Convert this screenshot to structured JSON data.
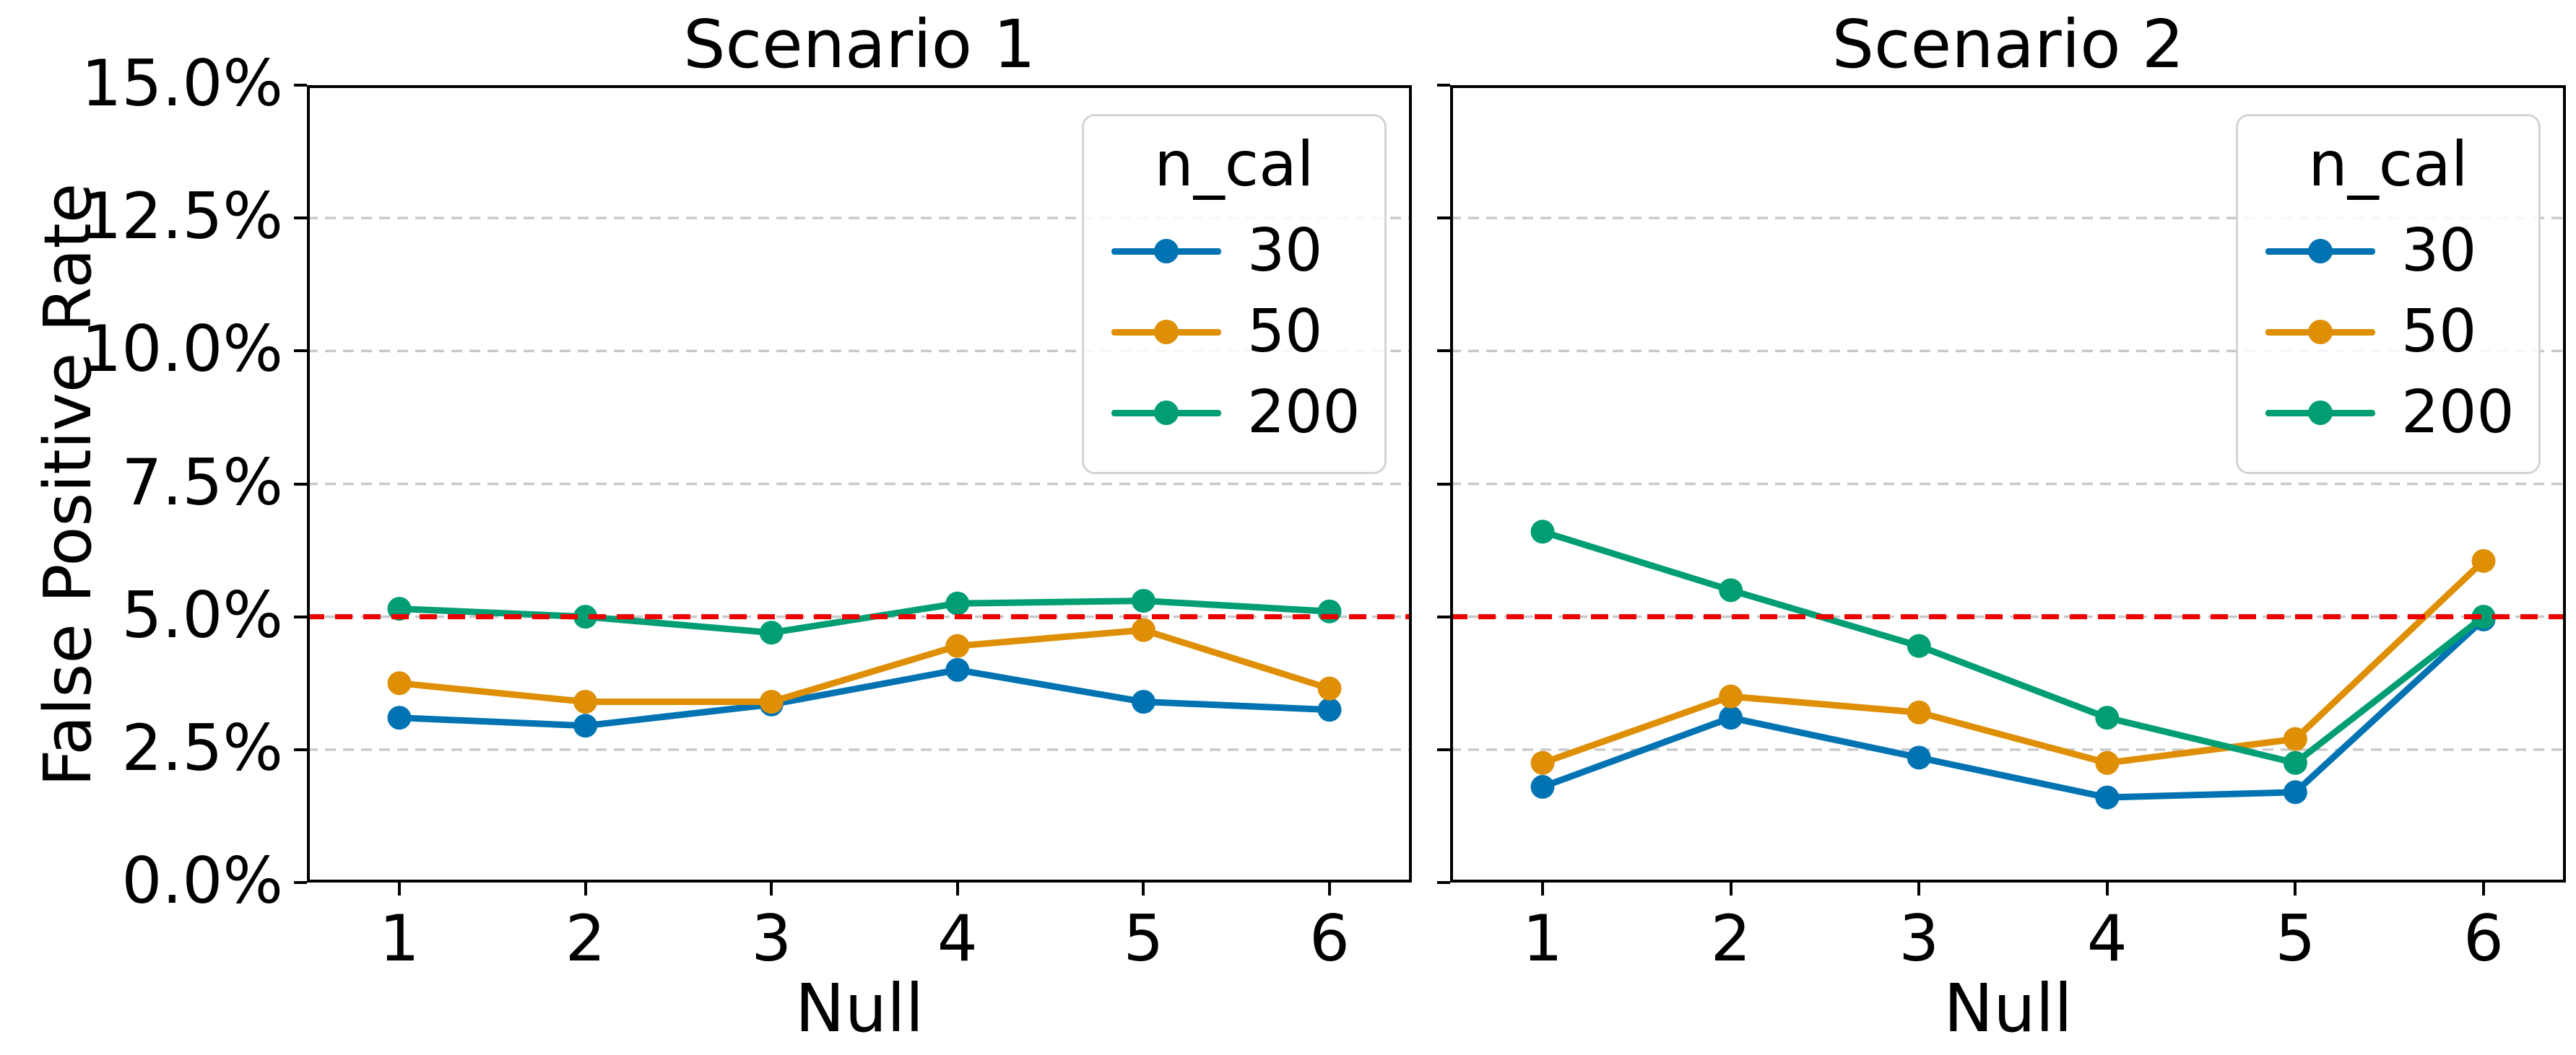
{
  "figure": {
    "background": "#ffffff",
    "reference_level_label": "5.0%"
  },
  "chart_data": [
    {
      "type": "line",
      "title": "Scenario 1",
      "xlabel": "Null",
      "ylabel": "False Positive Rate",
      "x": [
        1,
        2,
        3,
        4,
        5,
        6
      ],
      "xtick_labels": [
        "1",
        "2",
        "3",
        "4",
        "5",
        "6"
      ],
      "ylim": [
        0,
        15
      ],
      "yticks": [
        {
          "v": 0,
          "label": "0.0%",
          "grid": false
        },
        {
          "v": 2.5,
          "label": "2.5%",
          "grid": true
        },
        {
          "v": 5,
          "label": "5.0%",
          "grid": true
        },
        {
          "v": 7.5,
          "label": "7.5%",
          "grid": true
        },
        {
          "v": 10,
          "label": "10.0%",
          "grid": true
        },
        {
          "v": 12.5,
          "label": "12.5%",
          "grid": true
        },
        {
          "v": 15,
          "label": "15.0%",
          "grid": false
        }
      ],
      "show_ytick_labels": true,
      "reference_line": {
        "y": 5,
        "color": "#ee0000",
        "style": "dashed"
      },
      "legend": {
        "title": "n_cal",
        "position": "upper right"
      },
      "series": [
        {
          "name": "30",
          "color": "#0173b2",
          "values": [
            3.1,
            2.95,
            3.35,
            4.0,
            3.4,
            3.25
          ]
        },
        {
          "name": "50",
          "color": "#de8f05",
          "values": [
            3.75,
            3.4,
            3.4,
            4.45,
            4.75,
            3.65
          ]
        },
        {
          "name": "200",
          "color": "#029e73",
          "values": [
            5.15,
            5.0,
            4.7,
            5.25,
            5.3,
            5.1
          ]
        }
      ]
    },
    {
      "type": "line",
      "title": "Scenario 2",
      "xlabel": "Null",
      "ylabel": "",
      "x": [
        1,
        2,
        3,
        4,
        5,
        6
      ],
      "xtick_labels": [
        "1",
        "2",
        "3",
        "4",
        "5",
        "6"
      ],
      "ylim": [
        0,
        15
      ],
      "yticks": [
        {
          "v": 0,
          "label": "0.0%",
          "grid": false
        },
        {
          "v": 2.5,
          "label": "2.5%",
          "grid": true
        },
        {
          "v": 5,
          "label": "5.0%",
          "grid": true
        },
        {
          "v": 7.5,
          "label": "7.5%",
          "grid": true
        },
        {
          "v": 10,
          "label": "10.0%",
          "grid": true
        },
        {
          "v": 12.5,
          "label": "12.5%",
          "grid": true
        },
        {
          "v": 15,
          "label": "15.0%",
          "grid": false
        }
      ],
      "show_ytick_labels": false,
      "reference_line": {
        "y": 5,
        "color": "#ee0000",
        "style": "dashed"
      },
      "legend": {
        "title": "n_cal",
        "position": "upper right"
      },
      "series": [
        {
          "name": "30",
          "color": "#0173b2",
          "values": [
            1.8,
            3.1,
            2.35,
            1.6,
            1.7,
            4.95
          ]
        },
        {
          "name": "50",
          "color": "#de8f05",
          "values": [
            2.25,
            3.5,
            3.2,
            2.25,
            2.7,
            6.05
          ]
        },
        {
          "name": "200",
          "color": "#029e73",
          "values": [
            6.6,
            5.5,
            4.45,
            3.1,
            2.25,
            5.0
          ]
        }
      ]
    }
  ]
}
